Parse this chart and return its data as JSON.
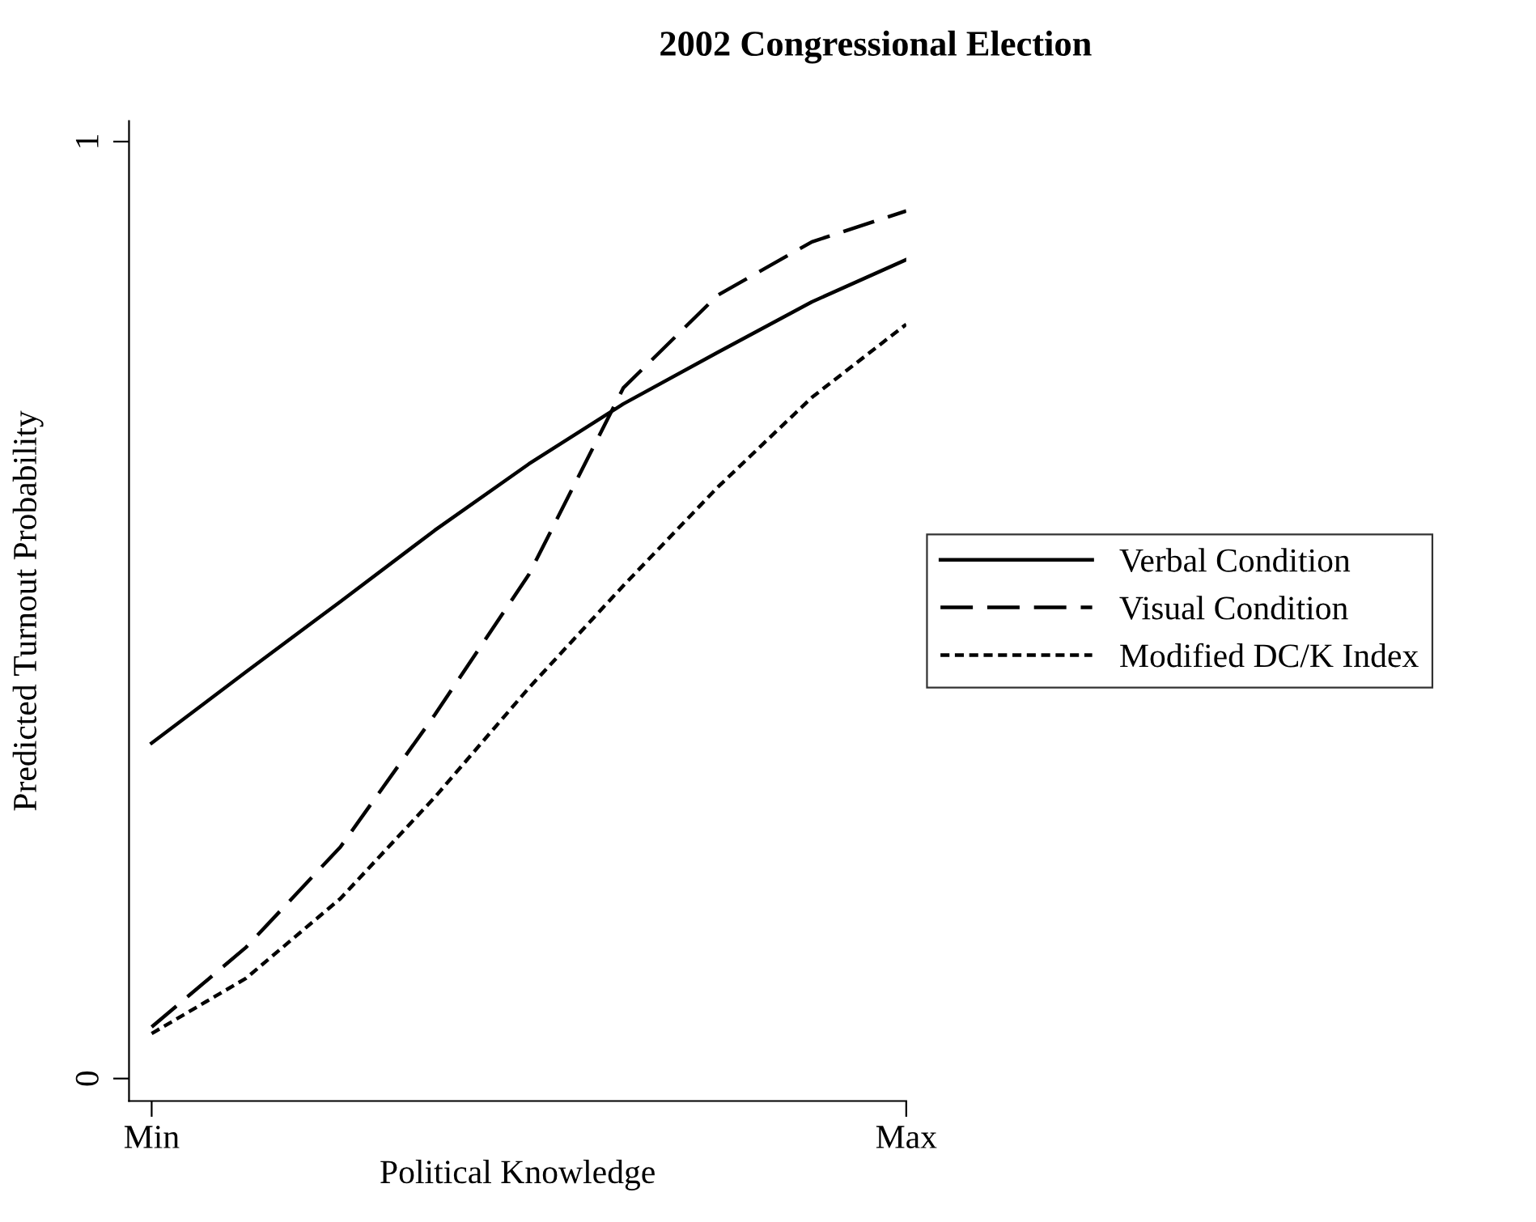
{
  "chart_data": {
    "type": "line",
    "title": "2002 Congressional Election",
    "xlabel": "Political Knowledge",
    "ylabel": "Predicted Turnout Probability",
    "categories": [
      "Min",
      null,
      null,
      null,
      null,
      null,
      null,
      null,
      "Max"
    ],
    "ylim": [
      -0.024,
      1.022
    ],
    "yticks": [
      0,
      1
    ],
    "grid": false,
    "legend": "right",
    "series": [
      {
        "name": "Verbal Condition",
        "color": "#000000",
        "line_style": "solid",
        "values": [
          0.358,
          0.434,
          0.509,
          0.585,
          0.656,
          0.72,
          0.775,
          0.829,
          0.874
        ]
      },
      {
        "name": "Visual Condition",
        "color": "#000000",
        "line_style": "dashed",
        "values": [
          0.055,
          0.14,
          0.247,
          0.388,
          0.538,
          0.737,
          0.836,
          0.893,
          0.926
        ]
      },
      {
        "name": "Modified DC/K Index",
        "color": "#000000",
        "line_style": "dotted",
        "values": [
          0.048,
          0.107,
          0.192,
          0.3,
          0.417,
          0.526,
          0.631,
          0.727,
          0.805
        ]
      }
    ]
  }
}
